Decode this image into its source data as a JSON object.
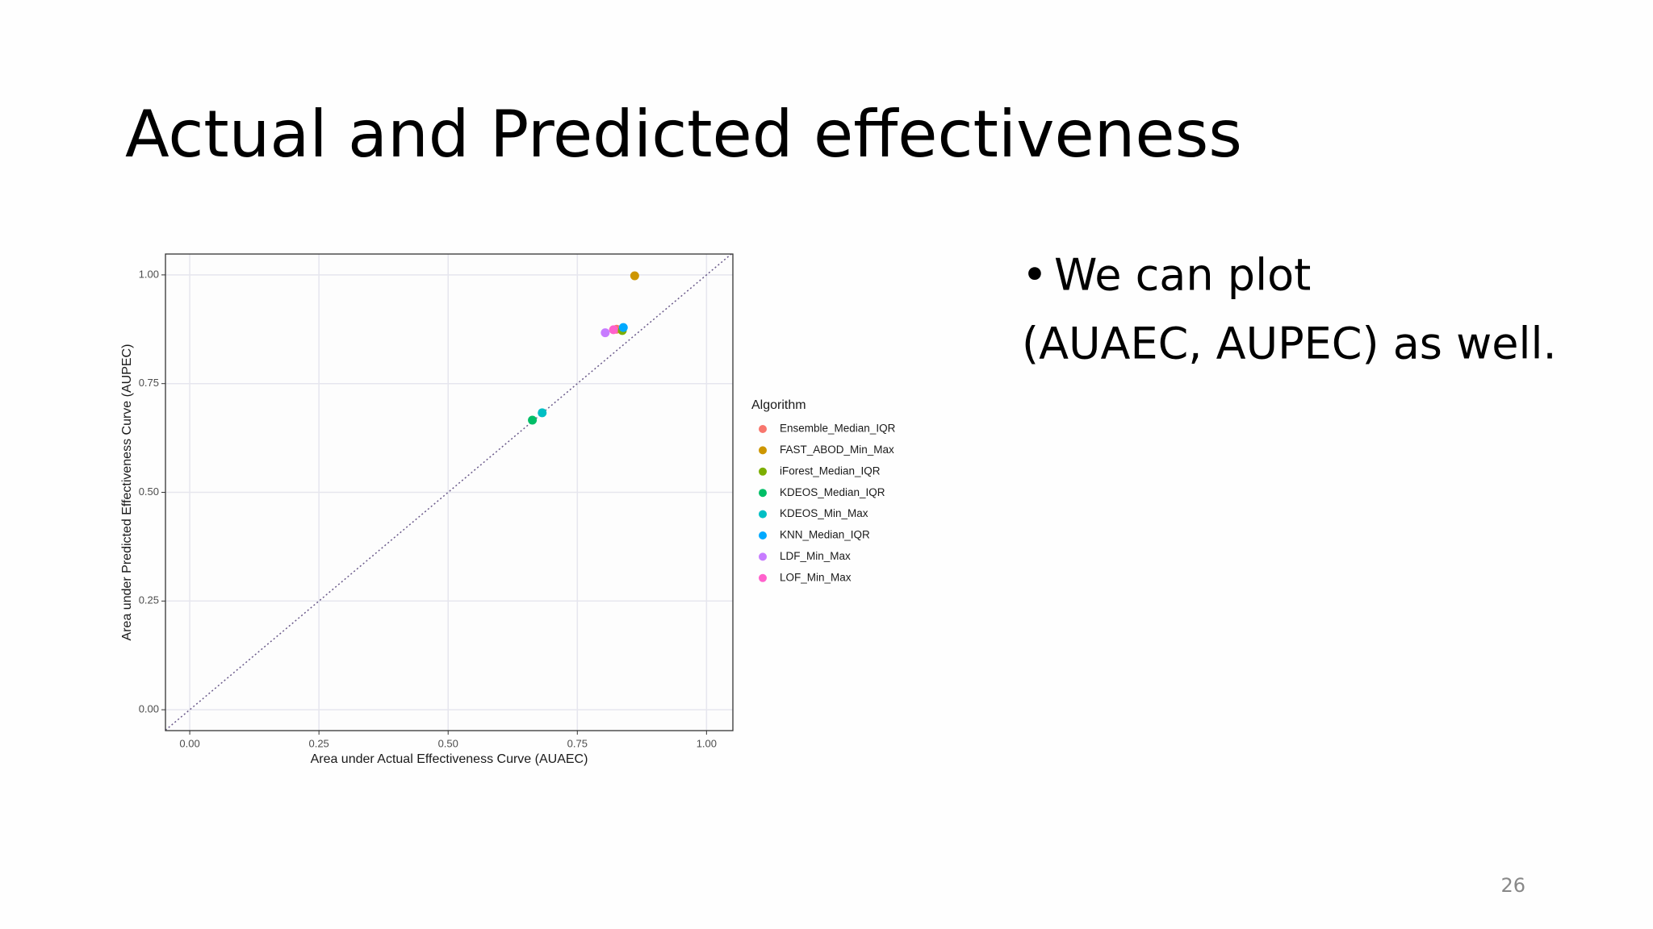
{
  "slide": {
    "title": "Actual and Predicted effectiveness",
    "bullets": [
      "We can plot",
      "(AUAEC, AUPEC) as well."
    ],
    "page_number": "26"
  },
  "chart_data": {
    "type": "scatter",
    "x_label": "Area under Actual Effectiveness Curve (AUAEC)",
    "y_label": "Area under Predicted Effectiveness Curve (AUPEC)",
    "legend_title": "Algorithm",
    "legend_position": "right",
    "diagonal": true,
    "grid": true,
    "xlim": [
      -0.047,
      1.051
    ],
    "ylim": [
      -0.048,
      1.048
    ],
    "xticks": [
      {
        "value": 0,
        "label": "0.00"
      },
      {
        "value": 0.25,
        "label": "0.25"
      },
      {
        "value": 0.5,
        "label": "0.50"
      },
      {
        "value": 0.75,
        "label": "0.75"
      },
      {
        "value": 1,
        "label": "1.00"
      }
    ],
    "yticks": [
      {
        "value": 0,
        "label": "0.00"
      },
      {
        "value": 0.25,
        "label": "0.25"
      },
      {
        "value": 0.5,
        "label": "0.50"
      },
      {
        "value": 0.75,
        "label": "0.75"
      },
      {
        "value": 1,
        "label": "1.00"
      }
    ],
    "series": [
      {
        "name": "Ensemble_Median_IQR",
        "color": "#F8766D",
        "x": [
          0.826
        ],
        "values": [
          0.875
        ]
      },
      {
        "name": "FAST_ABOD_Min_Max",
        "color": "#CD9600",
        "x": [
          0.861
        ],
        "values": [
          0.998
        ]
      },
      {
        "name": "iForest_Median_IQR",
        "color": "#7CAE00",
        "x": [
          0.837
        ],
        "values": [
          0.872
        ]
      },
      {
        "name": "KDEOS_Median_IQR",
        "color": "#00BE67",
        "x": [
          0.663
        ],
        "values": [
          0.666
        ]
      },
      {
        "name": "KDEOS_Min_Max",
        "color": "#00BFC4",
        "x": [
          0.682
        ],
        "values": [
          0.683
        ]
      },
      {
        "name": "KNN_Median_IQR",
        "color": "#00A9FF",
        "x": [
          0.839
        ],
        "values": [
          0.879
        ]
      },
      {
        "name": "LDF_Min_Max",
        "color": "#C77CFF",
        "x": [
          0.804
        ],
        "values": [
          0.867
        ]
      },
      {
        "name": "LOF_Min_Max",
        "color": "#FF61CC",
        "x": [
          0.82
        ],
        "values": [
          0.874
        ]
      }
    ]
  }
}
